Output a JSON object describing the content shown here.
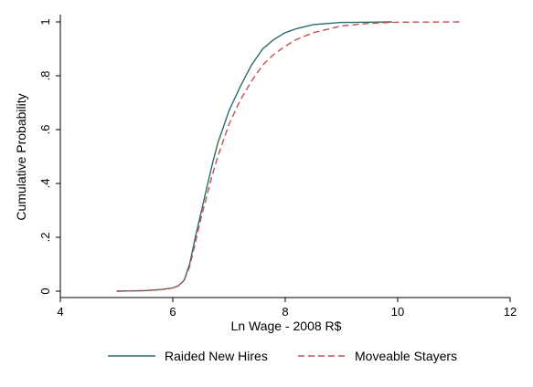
{
  "chart_data": {
    "type": "line",
    "title": "",
    "xlabel": "Ln Wage - 2008 R$",
    "ylabel": "Cumulative Probability",
    "xlim": [
      4,
      12
    ],
    "ylim": [
      0,
      1
    ],
    "x_ticks": [
      4,
      6,
      8,
      10,
      12
    ],
    "x_tick_labels": [
      "4",
      "6",
      "8",
      "10",
      "12"
    ],
    "y_ticks": [
      0,
      0.2,
      0.4,
      0.6,
      0.8,
      1
    ],
    "y_tick_labels": [
      "0",
      ".2",
      ".4",
      ".6",
      ".8",
      "1"
    ],
    "grid": false,
    "legend_position": "bottom",
    "series": [
      {
        "name": "Raided New Hires",
        "color": "#2b6b6b",
        "dash": "solid",
        "x": [
          5.0,
          5.5,
          5.8,
          6.0,
          6.1,
          6.2,
          6.3,
          6.4,
          6.5,
          6.6,
          6.7,
          6.8,
          6.9,
          7.0,
          7.2,
          7.4,
          7.6,
          7.8,
          8.0,
          8.2,
          8.5,
          9.0,
          9.5,
          9.9
        ],
        "y": [
          0.0,
          0.002,
          0.006,
          0.012,
          0.02,
          0.04,
          0.1,
          0.2,
          0.29,
          0.38,
          0.47,
          0.55,
          0.61,
          0.67,
          0.76,
          0.84,
          0.9,
          0.935,
          0.96,
          0.975,
          0.99,
          0.998,
          0.999,
          1.0
        ]
      },
      {
        "name": "Moveable Stayers",
        "color": "#c0504d",
        "dash": "dashed",
        "x": [
          5.0,
          5.5,
          5.8,
          6.0,
          6.1,
          6.2,
          6.3,
          6.4,
          6.5,
          6.6,
          6.7,
          6.8,
          6.9,
          7.0,
          7.2,
          7.4,
          7.6,
          7.8,
          8.0,
          8.2,
          8.5,
          9.0,
          9.5,
          10.0,
          11.1
        ],
        "y": [
          0.0,
          0.002,
          0.006,
          0.012,
          0.02,
          0.04,
          0.09,
          0.18,
          0.27,
          0.35,
          0.43,
          0.5,
          0.56,
          0.62,
          0.71,
          0.78,
          0.84,
          0.88,
          0.91,
          0.935,
          0.96,
          0.985,
          0.995,
          0.999,
          1.0
        ]
      }
    ]
  }
}
